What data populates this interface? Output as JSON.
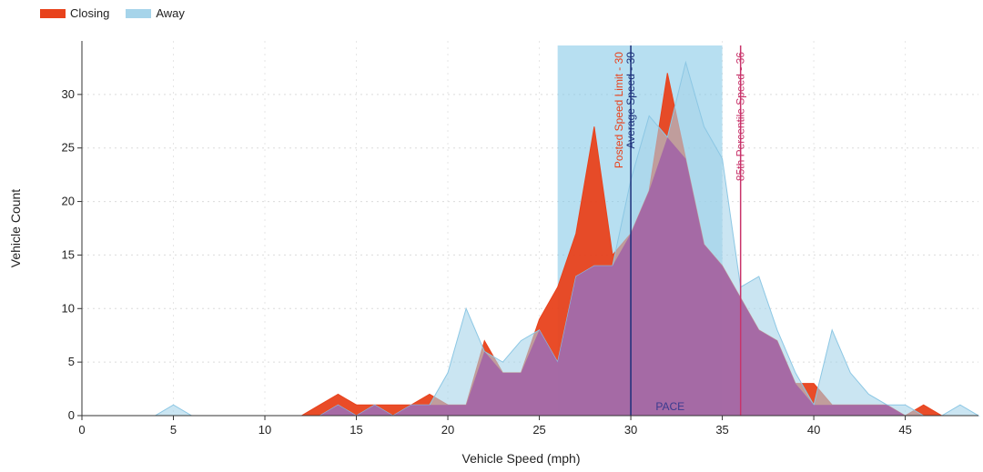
{
  "chart_data": {
    "type": "area",
    "xlabel": "Vehicle Speed (mph)",
    "ylabel": "Vehicle Count",
    "xlim": [
      0,
      49
    ],
    "ylim": [
      0,
      35
    ],
    "xticks": [
      0,
      5,
      10,
      15,
      20,
      25,
      30,
      35,
      40,
      45
    ],
    "yticks": [
      0,
      5,
      10,
      15,
      20,
      25,
      30
    ],
    "x": [
      0,
      1,
      2,
      3,
      4,
      5,
      6,
      7,
      8,
      9,
      10,
      11,
      12,
      13,
      14,
      15,
      16,
      17,
      18,
      19,
      20,
      21,
      22,
      23,
      24,
      25,
      26,
      27,
      28,
      29,
      30,
      31,
      32,
      33,
      34,
      35,
      36,
      37,
      38,
      39,
      40,
      41,
      42,
      43,
      44,
      45,
      46,
      47,
      48,
      49
    ],
    "legend_position": "top-left",
    "series": [
      {
        "name": "Closing",
        "color": "#e8421c",
        "values": [
          0,
          0,
          0,
          0,
          0,
          0,
          0,
          0,
          0,
          0,
          0,
          0,
          0,
          1,
          2,
          1,
          1,
          1,
          1,
          2,
          1,
          1,
          7,
          4,
          4,
          9,
          12,
          17,
          27,
          15,
          17,
          21,
          32,
          24,
          16,
          14,
          11,
          8,
          7,
          3,
          3,
          1,
          1,
          1,
          1,
          0,
          1,
          0,
          0,
          0
        ]
      },
      {
        "name": "Away",
        "color": "#a6d4ea",
        "values": [
          0,
          0,
          0,
          0,
          0,
          1,
          0,
          0,
          0,
          0,
          0,
          0,
          0,
          0,
          1,
          0,
          1,
          0,
          1,
          1,
          4,
          10,
          6,
          5,
          7,
          8,
          5,
          13,
          14,
          14,
          22,
          28,
          26,
          33,
          27,
          24,
          12,
          13,
          8,
          4,
          1,
          8,
          4,
          2,
          1,
          1,
          0,
          0,
          1,
          0
        ]
      }
    ],
    "shaded_region": {
      "from": 26,
      "to": 35,
      "label": "PACE",
      "color": "#7cc4e6"
    },
    "reference_lines": [
      {
        "x": 30,
        "label": "Posted Speed Limit - 30",
        "color": "#e8421c"
      },
      {
        "x": 30,
        "label": "Average Speed - 30",
        "color": "#1b2f7a"
      },
      {
        "x": 36,
        "label": "85th Percentile Speed - 36",
        "color": "#c8336a"
      }
    ]
  }
}
